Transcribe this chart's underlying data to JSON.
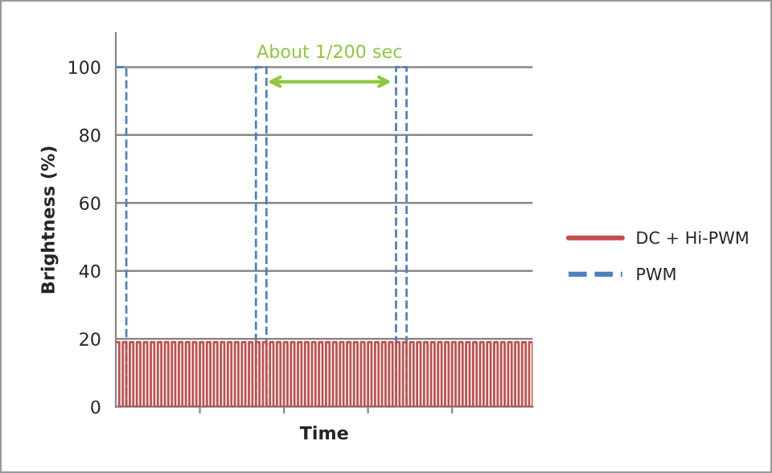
{
  "chart_data": {
    "type": "step",
    "xlabel": "Time",
    "ylabel": "Brightness (%)",
    "categories": [
      null,
      null,
      null,
      null,
      null,
      null,
      null,
      null,
      null,
      null,
      null,
      null,
      null,
      null,
      null,
      null,
      null,
      null,
      null,
      null,
      null,
      null,
      null,
      null,
      null,
      null,
      null,
      null,
      null,
      null,
      null,
      null,
      null,
      null,
      null,
      null,
      null,
      null,
      null,
      null,
      null,
      null,
      null,
      null,
      null,
      null,
      null,
      null,
      null,
      null,
      null,
      null,
      null,
      null,
      null,
      null,
      null,
      null,
      null,
      null,
      null,
      null,
      null,
      null,
      null,
      null,
      null,
      null,
      null,
      null,
      null,
      null,
      null,
      null,
      null,
      null,
      null,
      null,
      null,
      null,
      null,
      null,
      null,
      null,
      null,
      null,
      null,
      null,
      null,
      null,
      null,
      null,
      null,
      null,
      null,
      null,
      null,
      null,
      null,
      null,
      null,
      null,
      null,
      null,
      null,
      null,
      null,
      null,
      null,
      null,
      null,
      null,
      null,
      null,
      null,
      null,
      null,
      null,
      null,
      null
    ],
    "series": [
      {
        "name": "DC + Hi-PWM",
        "color": "#c0504d",
        "line_style": "solid",
        "values": [
          19,
          0,
          19,
          0,
          19,
          0,
          19,
          0,
          19,
          0,
          19,
          0,
          19,
          0,
          19,
          0,
          19,
          0,
          19,
          0,
          19,
          0,
          19,
          0,
          19,
          0,
          19,
          0,
          19,
          0,
          19,
          0,
          19,
          0,
          19,
          0,
          19,
          0,
          19,
          0,
          19,
          0,
          19,
          0,
          19,
          0,
          19,
          0,
          19,
          0,
          19,
          0,
          19,
          0,
          19,
          0,
          19,
          0,
          19,
          0,
          19,
          0,
          19,
          0,
          19,
          0,
          19,
          0,
          19,
          0,
          19,
          0,
          19,
          0,
          19,
          0,
          19,
          0,
          19,
          0,
          19,
          0,
          19,
          0,
          19,
          0,
          19,
          0,
          19,
          0,
          19,
          0,
          19,
          0,
          19,
          0,
          19,
          0,
          19,
          0,
          19,
          0,
          19,
          0,
          19,
          0,
          19,
          0,
          19,
          0,
          19,
          0,
          19,
          0,
          19,
          0,
          19,
          0,
          19,
          0
        ]
      },
      {
        "name": "PWM",
        "color": "#4f81bd",
        "line_style": "dashed",
        "values": [
          100,
          100,
          100,
          0,
          0,
          0,
          0,
          0,
          0,
          0,
          0,
          0,
          0,
          0,
          0,
          0,
          0,
          0,
          0,
          0,
          0,
          0,
          0,
          0,
          0,
          0,
          0,
          0,
          0,
          0,
          0,
          0,
          0,
          0,
          0,
          0,
          0,
          0,
          0,
          0,
          100,
          100,
          100,
          0,
          0,
          0,
          0,
          0,
          0,
          0,
          0,
          0,
          0,
          0,
          0,
          0,
          0,
          0,
          0,
          0,
          0,
          0,
          0,
          0,
          0,
          0,
          0,
          0,
          0,
          0,
          0,
          0,
          0,
          0,
          0,
          0,
          0,
          0,
          0,
          0,
          100,
          100,
          100,
          0,
          0,
          0,
          0,
          0,
          0,
          0,
          0,
          0,
          0,
          0,
          0,
          0,
          0,
          0,
          0,
          0,
          0,
          0,
          0,
          0,
          0,
          0,
          0,
          0,
          0,
          0,
          0,
          0,
          0,
          0,
          0,
          0,
          0,
          0,
          0,
          0
        ]
      }
    ],
    "ylim": [
      0,
      110
    ],
    "yticks": [
      0,
      20,
      40,
      60,
      80,
      100
    ],
    "grid": "y",
    "legend": "right",
    "annotations": [
      "About 1/200 sec"
    ]
  }
}
